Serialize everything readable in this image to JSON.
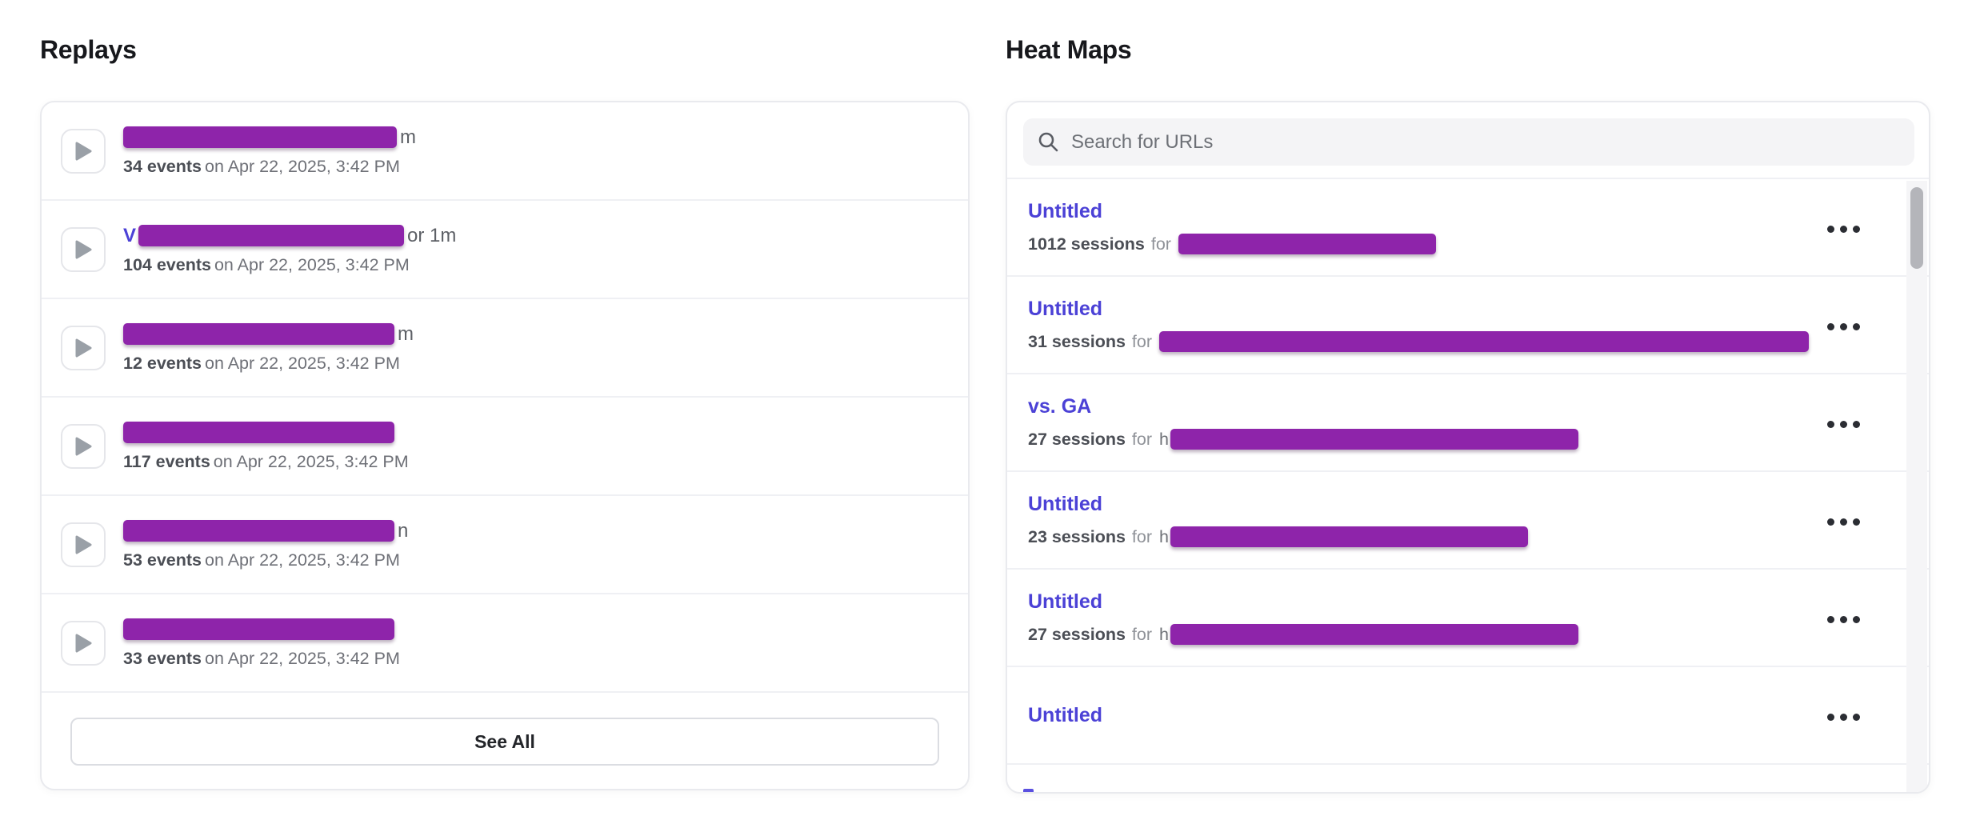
{
  "colors": {
    "link": "#4b41d6",
    "redaction": "#8e24aa",
    "heading": "#17181c",
    "meta_bold": "#4b4e55",
    "meta_muted": "#6e7077"
  },
  "replays": {
    "title": "Replays",
    "see_all_label": "See All",
    "rows": [
      {
        "name_prefix": "",
        "redaction_width": 342,
        "name_suffix": "m",
        "events": "34 events",
        "meta": "on Apr 22, 2025, 3:42 PM"
      },
      {
        "name_prefix": "V",
        "redaction_width": 332,
        "name_suffix": "or 1m",
        "events": "104 events",
        "meta": "on Apr 22, 2025, 3:42 PM"
      },
      {
        "name_prefix": "",
        "redaction_width": 339,
        "name_suffix": "m",
        "events": "12 events",
        "meta": "on Apr 22, 2025, 3:42 PM"
      },
      {
        "name_prefix": "",
        "redaction_width": 339,
        "name_suffix": "",
        "events": "117 events",
        "meta": "on Apr 22, 2025, 3:42 PM"
      },
      {
        "name_prefix": "",
        "redaction_width": 339,
        "name_suffix": "n",
        "events": "53 events",
        "meta": "on Apr 22, 2025, 3:42 PM"
      },
      {
        "name_prefix": "",
        "redaction_width": 339,
        "name_suffix": "",
        "events": "33 events",
        "meta": "on Apr 22, 2025, 3:42 PM"
      }
    ]
  },
  "heatmaps": {
    "title": "Heat Maps",
    "search_placeholder": "Search for URLs",
    "rows": [
      {
        "title": "Untitled",
        "sessions": "1012 sessions",
        "for_label": "for",
        "url_prefix": "",
        "redaction_width": 322
      },
      {
        "title": "Untitled",
        "sessions": "31 sessions",
        "for_label": "for",
        "url_prefix": "",
        "redaction_width": 820
      },
      {
        "title": "vs. GA",
        "sessions": "27 sessions",
        "for_label": "for",
        "url_prefix": "h",
        "redaction_width": 510
      },
      {
        "title": "Untitled",
        "sessions": "23 sessions",
        "for_label": "for",
        "url_prefix": "h",
        "redaction_width": 447
      },
      {
        "title": "Untitled",
        "sessions": "27 sessions",
        "for_label": "for",
        "url_prefix": "h",
        "redaction_width": 510
      },
      {
        "title": "Untitled",
        "sessions": null,
        "for_label": "",
        "url_prefix": "",
        "redaction_width": 0
      }
    ],
    "partial_row_visible": true
  }
}
